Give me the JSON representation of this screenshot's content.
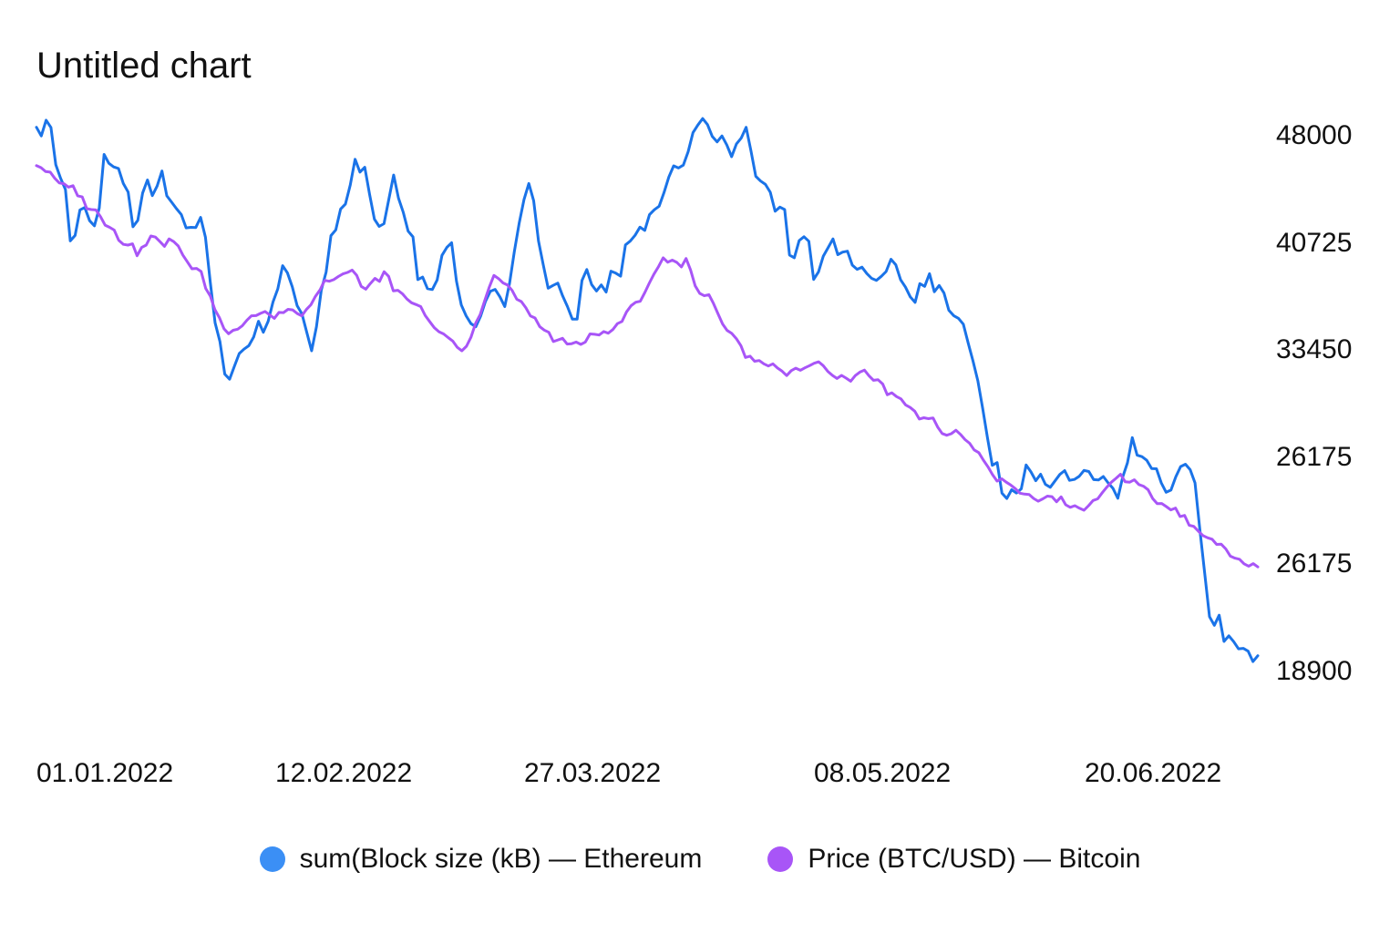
{
  "title": "Untitled chart",
  "colors": {
    "ethereum": "#1a73e8",
    "bitcoin": "#a855f7",
    "ethereum_dot": "#3b8ff5"
  },
  "legend": [
    {
      "label": "sum(Block size (kB) — Ethereum",
      "color": "#3b8ff5"
    },
    {
      "label": "Price (BTC/USD) — Bitcoin",
      "color": "#a855f7"
    }
  ],
  "chart_data": {
    "type": "line",
    "x_range": [
      "01.01.2022",
      "29.06.2022"
    ],
    "x_tick_labels": [
      "01.01.2022",
      "12.02.2022",
      "27.03.2022",
      "08.05.2022",
      "20.06.2022"
    ],
    "y_tick_labels": [
      "48000",
      "40725",
      "33450",
      "26175",
      "26175",
      "18900"
    ],
    "ylim": [
      18900,
      48000
    ],
    "grid": false,
    "legend_position": "bottom",
    "series": [
      {
        "name": "sum(Block size (kB) — Ethereum",
        "values": [
          48410,
          47940,
          48800,
          48400,
          46370,
          45630,
          45020,
          42220,
          42520,
          43910,
          44040,
          43320,
          43040,
          44010,
          46930,
          46450,
          46250,
          46170,
          45350,
          44880,
          42990,
          43340,
          44830,
          45540,
          44690,
          45210,
          46030,
          44680,
          44330,
          43980,
          43660,
          42930,
          42960,
          42950,
          43500,
          42420,
          39970,
          37750,
          36730,
          34960,
          34680,
          35390,
          36080,
          36320,
          36510,
          36980,
          37840,
          37240,
          37840,
          38890,
          39610,
          40870,
          40470,
          39710,
          38690,
          38240,
          37230,
          36230,
          37540,
          39540,
          40520,
          42510,
          42820,
          43960,
          44230,
          45270,
          46670,
          45970,
          46230,
          44750,
          43400,
          43010,
          43160,
          44490,
          45810,
          44550,
          43770,
          42750,
          42440,
          40110,
          40250,
          39620,
          39570,
          40090,
          41430,
          41860,
          42120,
          40030,
          38730,
          38140,
          37710,
          37540,
          38120,
          38920,
          39470,
          39580,
          39170,
          38640,
          39920,
          41640,
          43180,
          44470,
          45350,
          44410,
          42220,
          40900,
          39640,
          39790,
          39920,
          39220,
          38640,
          37960,
          37960,
          40060,
          40660,
          39840,
          39490,
          39820,
          39430,
          40570,
          40460,
          40300,
          42000,
          42210,
          42530,
          42970,
          42790,
          43650,
          43920,
          44110,
          44850,
          45700,
          46310,
          46190,
          46350,
          47080,
          48120,
          48530,
          48890,
          48560,
          47910,
          47620,
          47940,
          47450,
          46810,
          47510,
          47830,
          48410,
          47130,
          45740,
          45480,
          45300,
          44870,
          43840,
          44060,
          43930,
          41450,
          41300,
          42240,
          42450,
          42200,
          40120,
          40530,
          41390,
          41850,
          42330,
          41470,
          41610,
          41660,
          40900,
          40670,
          40790,
          40440,
          40180,
          40070,
          40290,
          40550,
          41220,
          40920,
          40100,
          39700,
          39170,
          38870,
          39890,
          39740,
          40430,
          39450,
          39790,
          39380,
          38440,
          38150,
          38000,
          37680,
          36660,
          35680,
          34600,
          33100,
          31490,
          29990,
          30140,
          28470,
          28180,
          28660,
          28480,
          28710,
          30010,
          29630,
          29150,
          29500,
          28950,
          28790,
          29140,
          29490,
          29700,
          29170,
          29220,
          29390,
          29710,
          29650,
          29210,
          29190,
          29380,
          29030,
          28730,
          28190,
          29340,
          30130,
          31500,
          30540,
          30460,
          30260,
          29810,
          29800,
          29030,
          28520,
          28640,
          29360,
          29920,
          30050,
          29750,
          29030,
          26490,
          24120,
          21740,
          21270,
          21820,
          20390,
          20700,
          20380,
          19990,
          20010,
          19860,
          19290,
          19610
        ]
      },
      {
        "name": "Price (BTC/USD) — Bitcoin",
        "values": [
          46320,
          46210,
          46000,
          45970,
          45630,
          45380,
          45340,
          45150,
          45230,
          44680,
          44620,
          43980,
          43930,
          43910,
          43540,
          43080,
          42960,
          42810,
          42250,
          42030,
          41990,
          42060,
          41410,
          41860,
          41990,
          42490,
          42430,
          42180,
          41920,
          42330,
          42180,
          41940,
          41450,
          41080,
          40700,
          40720,
          40550,
          39630,
          39220,
          38480,
          38040,
          37430,
          37160,
          37350,
          37410,
          37590,
          37900,
          38140,
          38150,
          38270,
          38370,
          38180,
          38000,
          38320,
          38310,
          38490,
          38460,
          38260,
          38140,
          38480,
          38740,
          39200,
          39560,
          40070,
          40020,
          40110,
          40280,
          40420,
          40500,
          40630,
          40350,
          39740,
          39590,
          39900,
          40180,
          40010,
          40540,
          40290,
          39500,
          39530,
          39340,
          39050,
          38850,
          38750,
          38640,
          38150,
          37810,
          37480,
          37270,
          37150,
          36950,
          36760,
          36420,
          36230,
          36480,
          36980,
          37730,
          38200,
          38960,
          39710,
          40340,
          40170,
          39930,
          39810,
          39520,
          39040,
          38910,
          38570,
          38130,
          38020,
          37550,
          37360,
          37240,
          36730,
          36820,
          36910,
          36600,
          36620,
          36710,
          36580,
          36710,
          37150,
          37130,
          37090,
          37280,
          37190,
          37390,
          37710,
          37830,
          38350,
          38690,
          38880,
          38930,
          39410,
          39930,
          40410,
          40820,
          41300,
          41060,
          41170,
          41050,
          40800,
          41260,
          40630,
          39770,
          39360,
          39230,
          39290,
          38810,
          38240,
          37690,
          37340,
          37180,
          36890,
          36510,
          35870,
          35940,
          35660,
          35700,
          35520,
          35400,
          35520,
          35290,
          35120,
          34880,
          35150,
          35280,
          35170,
          35300,
          35420,
          35550,
          35630,
          35420,
          35110,
          34890,
          34720,
          34890,
          34740,
          34570,
          34880,
          35070,
          35180,
          34870,
          34620,
          34650,
          34420,
          33830,
          33940,
          33740,
          33610,
          33280,
          33140,
          32940,
          32510,
          32580,
          32530,
          32570,
          32080,
          31720,
          31630,
          31710,
          31900,
          31670,
          31390,
          31190,
          30830,
          30680,
          30270,
          29910,
          29480,
          29130,
          29260,
          29070,
          28910,
          28720,
          28470,
          28420,
          28400,
          28180,
          28030,
          28160,
          28310,
          28280,
          28000,
          28270,
          27840,
          27700,
          27790,
          27650,
          27540,
          27790,
          28070,
          28160,
          28500,
          28800,
          29070,
          29280,
          29500,
          29090,
          29070,
          29200,
          28940,
          28850,
          28660,
          28180,
          27900,
          27910,
          27740,
          27560,
          27660,
          27200,
          27260,
          26720,
          26660,
          26400,
          26160,
          26040,
          25960,
          25680,
          25690,
          25430,
          25040,
          24930,
          24870,
          24620,
          24490,
          24630,
          24450
        ]
      }
    ]
  }
}
